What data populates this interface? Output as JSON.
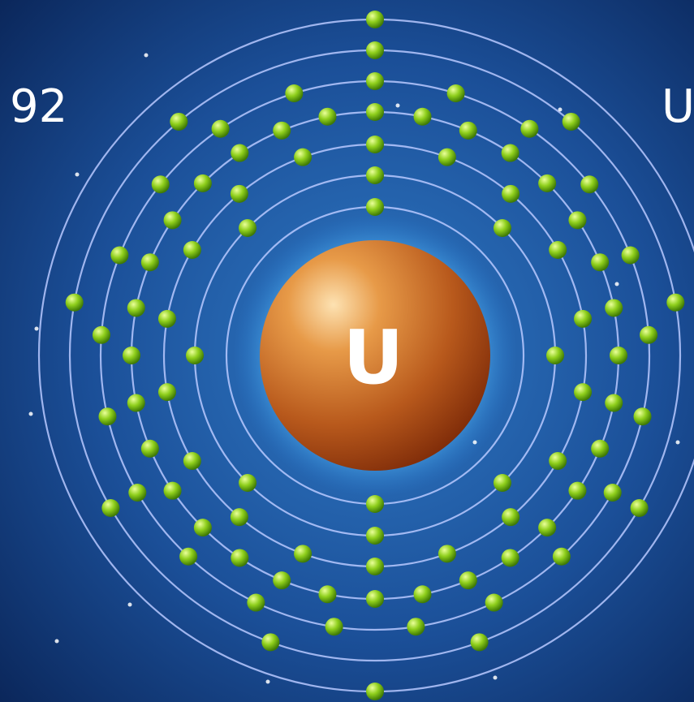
{
  "atomic_number": 92,
  "symbol": "U",
  "nucleus_label": "U"
}
